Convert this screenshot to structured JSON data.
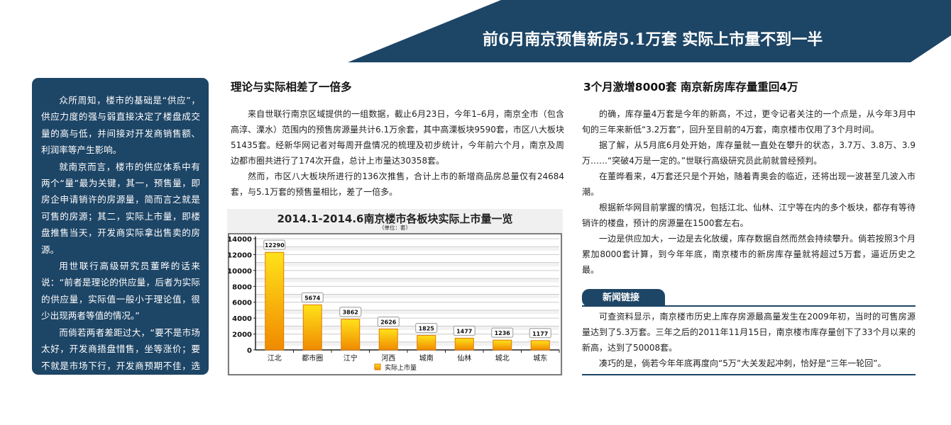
{
  "header": {
    "title": "前6月南京预售新房5.1万套 实际上市量不到一半"
  },
  "sidebar": {
    "paragraphs": [
      "众所周知，楼市的基础是“供应”，供应力度的强与弱直接决定了楼盘成交量的高与低，并间接对开发商销售额、利润率等产生影响。",
      "就南京而言，楼市的供应体系中有两个“量”最为关键，其一，预售量，即房企申请销许的房源量，简而言之就是可售的房源；其二，实际上市量，即楼盘推售当天，开发商实际拿出售卖的房源。",
      "用世联行高级研究员董晔的话来说：“前者是理论的供应量，后者为实际的供应量，实际值一般小于理论值，很少出现两者等值的情况。”",
      "而倘若两者差距过大，“要不是市场太好，开发商捂盘惜售，坐等涨价；要不就是市场下行，开发商预期不佳，选择放缓推盘节奏。”董晔说。"
    ]
  },
  "middle": {
    "heading": "理论与实际相差了一倍多",
    "paragraphs": [
      "来自世联行南京区域提供的一组数据，截止6月23日，今年1–6月，南京全市（包含高淳、溧水）范围内的预售房源量共计6.1万余套，其中高溧板块9590套，市区八大板块51435套。经新华网记者对每周开盘情况的梳理及初步统计，今年前六个月，南京及周边都市圈共进行了174次开盘，总计上市量达30358套。",
      "然而，市区八大板块所进行的136次推售，合计上市的新增商品房总量仅有24684套，与5.1万套的预售量相比，差了一倍多。"
    ]
  },
  "chart_data": {
    "type": "bar",
    "title": "2014.1-2014.6南京楼市各板块实际上市量一览",
    "subtitle": "（单位：套）",
    "categories": [
      "江北",
      "都市圈",
      "江宁",
      "河西",
      "城南",
      "仙林",
      "城北",
      "城东"
    ],
    "series": [
      {
        "name": "实际上市量",
        "values": [
          12290,
          5674,
          3862,
          2626,
          1825,
          1477,
          1236,
          1177
        ]
      }
    ],
    "yticks": [
      "0",
      "2000",
      "4000",
      "6000",
      "8000",
      "10000",
      "12000",
      "14000"
    ],
    "ylim": [
      0,
      14000
    ],
    "grid": true,
    "legend": "bottom",
    "colors": {
      "bar_top": "#ffe21a",
      "bar_bottom": "#f08a00"
    }
  },
  "right": {
    "heading": "3个月激增8000套 南京新房库存量重回4万",
    "paragraphs": [
      "的确，库存量4万套是今年的新高，不过，更令记者关注的一个点是，从今年3月中旬的三年来新低“3.2万套”，回升至目前的4万套，南京楼市仅用了3个月时间。",
      "据了解，从5月底6月处开始，库存量就一直处在攀升的状态，3.7万、3.8万、3.9万……“突破4万是一定的。”世联行高级研究员此前就曾经预判。",
      "在董晔看来，4万套还只是个开始，随着青奥会的临近，还将出现一波甚至几波入市潮。",
      "根据新华网目前掌握的情况，包括江北、仙林、江宁等在内的多个板块，都存有等待销许的楼盘，预计的房源量在1500套左右。",
      "一边是供应加大，一边是去化放缓，库存数据自然而然会持续攀升。倘若按照3个月累加8000套计算，到今年年底，南京楼市的新房库存量就将超过5万套，逼近历史之最。"
    ]
  },
  "news": {
    "label": "新闻链接",
    "paragraphs": [
      "可查资料显示，南京楼市历史上库存房源最高量发生在2009年初，当时的可售房源量达到了5.3万套。三年之后的2011年11月15日，南京楼市库存量创下了33个月以来的新高，达到了50008套。",
      "凑巧的是，倘若今年年底再度向“5万”大关发起冲刺，恰好是“三年一轮回”。"
    ]
  },
  "colors": {
    "navy": "#1d4566"
  }
}
